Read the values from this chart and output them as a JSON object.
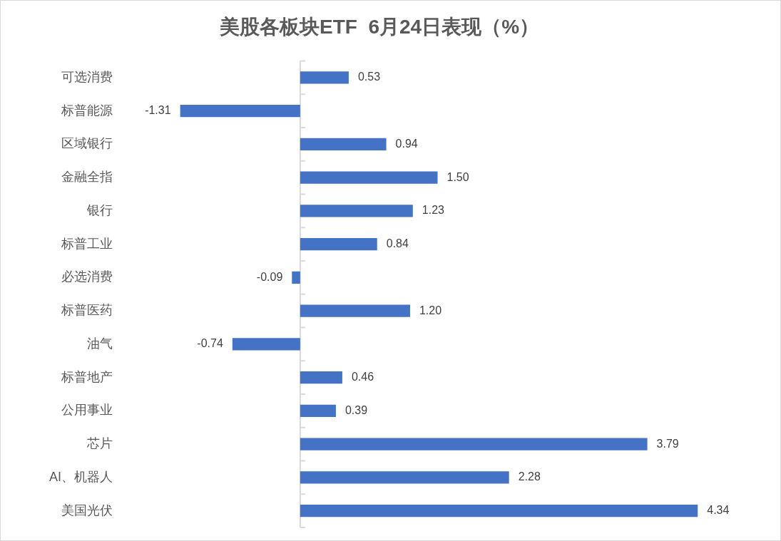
{
  "chart_data": {
    "type": "bar",
    "orientation": "horizontal",
    "title": "美股各板块ETF  6月24日表现（%）",
    "categories": [
      "可选消费",
      "标普能源",
      "区域银行",
      "金融全指",
      "银行",
      "标普工业",
      "必选消费",
      "标普医药",
      "油气",
      "标普地产",
      "公用事业",
      "芯片",
      "AI、机器人",
      "美国光伏"
    ],
    "values": [
      0.53,
      -1.31,
      0.94,
      1.5,
      1.23,
      0.84,
      -0.09,
      1.2,
      -0.74,
      0.46,
      0.39,
      3.79,
      2.28,
      4.34
    ],
    "value_labels": [
      "0.53",
      "-1.31",
      "0.94",
      "1.50",
      "1.23",
      "0.84",
      "-0.09",
      "1.20",
      "-0.74",
      "0.46",
      "0.39",
      "3.79",
      "2.28",
      "4.34"
    ],
    "color": "#4472c4"
  }
}
